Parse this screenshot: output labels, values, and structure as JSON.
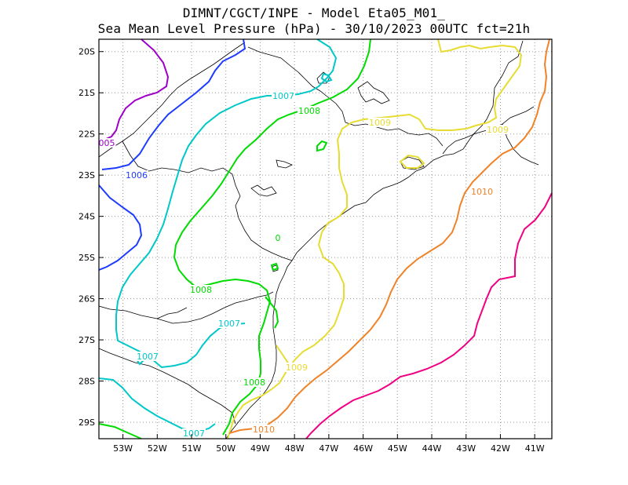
{
  "title_line1": "DIMNT/CGCT/INPE -  Model Eta05_M01_",
  "title_line2": "Sea Mean Level Pressure (hPa) - 30/10/2023 00UTC fct=21h",
  "map": {
    "lon_range": [
      -53.7,
      -40.5
    ],
    "lat_range": [
      -29.4,
      -19.7
    ],
    "lon_ticks": [
      "53W",
      "52W",
      "51W",
      "50W",
      "49W",
      "48W",
      "47W",
      "46W",
      "45W",
      "44W",
      "43W",
      "42W",
      "41W"
    ],
    "lat_ticks": [
      "20S",
      "21S",
      "22S",
      "23S",
      "24S",
      "25S",
      "26S",
      "27S",
      "28S",
      "29S"
    ],
    "grid": "dotted"
  },
  "contour_labels": [
    {
      "text": "005",
      "color": "#a000c8"
    },
    {
      "text": "1006",
      "color": "#1e3cff"
    },
    {
      "text": "1007",
      "color": "#00c8c8"
    },
    {
      "text": "1007",
      "color": "#00c8c8"
    },
    {
      "text": "1007",
      "color": "#00c8c8"
    },
    {
      "text": "1007",
      "color": "#00c8c8"
    },
    {
      "text": "1008",
      "color": "#00dc00"
    },
    {
      "text": "1008",
      "color": "#00dc00"
    },
    {
      "text": "1008",
      "color": "#00dc00"
    },
    {
      "text": "0",
      "color": "#00dc00"
    },
    {
      "text": "1009",
      "color": "#e6dc32"
    },
    {
      "text": "1009",
      "color": "#e6dc32"
    },
    {
      "text": "1009",
      "color": "#e6dc32"
    },
    {
      "text": "1010",
      "color": "#f08228"
    },
    {
      "text": "1010",
      "color": "#f08228"
    }
  ],
  "colors": {
    "1005": "#a000c8",
    "1006": "#1e3cff",
    "1007": "#00c8c8",
    "1008": "#00dc00",
    "1009": "#e6dc32",
    "1010": "#f08228",
    "1011": "#f00082"
  }
}
